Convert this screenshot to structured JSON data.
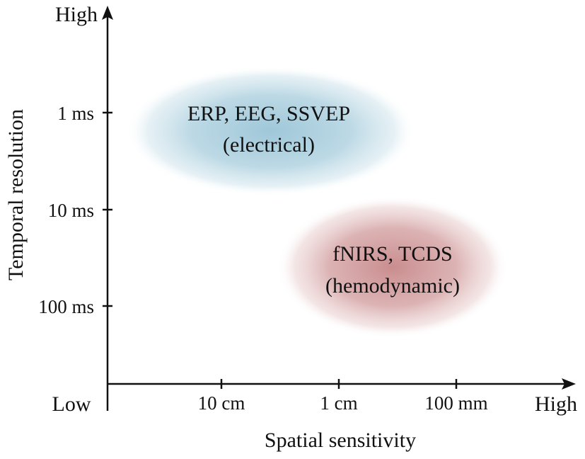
{
  "title": "",
  "x_axis": {
    "label": "Spatial sensitivity",
    "low_label": "Low",
    "high_label": "High",
    "ticks": [
      "10 cm",
      "1 cm",
      "100 mm"
    ]
  },
  "y_axis": {
    "label": "Temporal resolution",
    "high_label": "High",
    "ticks": [
      "1 ms",
      "10 ms",
      "100 ms"
    ]
  },
  "regions": [
    {
      "id": "electrical",
      "line1": "ERP, EEG, SSVEP",
      "line2": "(electrical)",
      "color": "#7fb4cc"
    },
    {
      "id": "hemodynamic",
      "line1": "fNIRS, TCDS",
      "line2": "(hemodynamic)",
      "color": "#b35c5e"
    }
  ]
}
